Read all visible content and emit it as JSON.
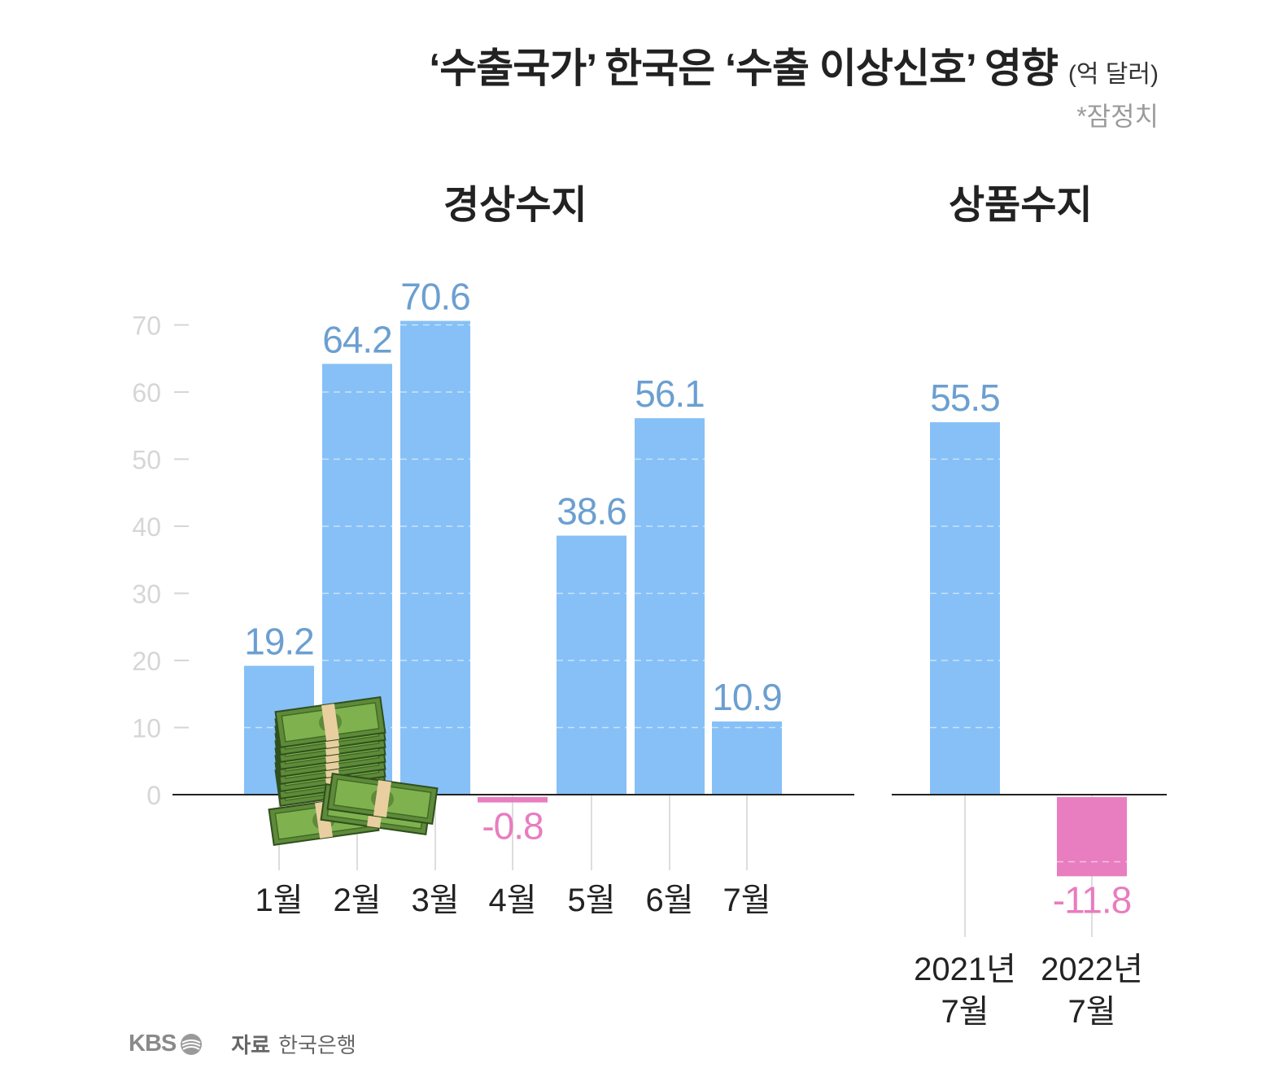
{
  "title": {
    "main": "‘수출국가’ 한국은 ‘수출 이상신호’ 영향",
    "unit": "(억 달러)",
    "note": "*잠정치"
  },
  "colors": {
    "positive": "#86c0f6",
    "negative": "#e87dbf",
    "positive_label": "#6b9fd0",
    "negative_label": "#e87dbf",
    "tick": "#cccccc"
  },
  "chart_data": [
    {
      "type": "bar",
      "title": "경상수지",
      "categories": [
        "1월",
        "2월",
        "3월",
        "4월",
        "5월",
        "6월",
        "7월"
      ],
      "values": [
        19.2,
        64.2,
        70.6,
        -0.8,
        38.6,
        56.1,
        10.9
      ],
      "yticks": [
        0,
        10,
        20,
        30,
        40,
        50,
        60,
        70
      ],
      "ylim": [
        -12,
        72
      ],
      "grid": "dashed"
    },
    {
      "type": "bar",
      "title": "상품수지",
      "categories": [
        [
          "2021년",
          "7월"
        ],
        [
          "2022년",
          "7월"
        ]
      ],
      "values": [
        55.5,
        -11.8
      ],
      "ylim": [
        -12,
        72
      ],
      "grid": "dashed"
    }
  ],
  "footer": {
    "logo": "KBS",
    "source_label": "자료",
    "source": "한국은행"
  },
  "decoration": "money-stack-icon"
}
